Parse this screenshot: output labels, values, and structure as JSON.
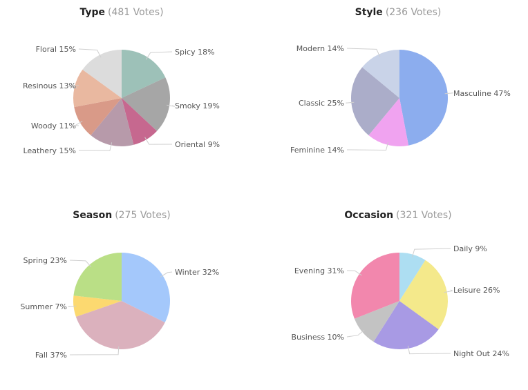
{
  "chart_data": [
    {
      "type": "pie",
      "title": "Type",
      "subtitle": "(481 Votes)",
      "slices": [
        {
          "label": "Spicy 18%",
          "value": 18,
          "color": "#9dc1b8"
        },
        {
          "label": "Smoky 19%",
          "value": 19,
          "color": "#a6a6a6"
        },
        {
          "label": "Oriental 9%",
          "value": 9,
          "color": "#c6688f"
        },
        {
          "label": "Leathery 15%",
          "value": 15,
          "color": "#b79aaa"
        },
        {
          "label": "Woody 11%",
          "value": 11,
          "color": "#d99a88"
        },
        {
          "label": "Resinous 13%",
          "value": 13,
          "color": "#e9b8a0"
        },
        {
          "label": "Floral 15%",
          "value": 15,
          "color": "#dcdcdc"
        }
      ]
    },
    {
      "type": "pie",
      "title": "Style",
      "subtitle": "(236 Votes)",
      "slices": [
        {
          "label": "Masculine 47%",
          "value": 47,
          "color": "#8cadee"
        },
        {
          "label": "Feminine 14%",
          "value": 14,
          "color": "#f0a3f0"
        },
        {
          "label": "Classic 25%",
          "value": 25,
          "color": "#abadc9"
        },
        {
          "label": "Modern 14%",
          "value": 14,
          "color": "#c9d3e8"
        }
      ]
    },
    {
      "type": "pie",
      "title": "Season",
      "subtitle": "(275 Votes)",
      "slices": [
        {
          "label": "Winter 32%",
          "value": 32,
          "color": "#a4c8fb"
        },
        {
          "label": "Fall 37%",
          "value": 37,
          "color": "#dbb1bd"
        },
        {
          "label": "Summer 7%",
          "value": 7,
          "color": "#fcd970"
        },
        {
          "label": "Spring 23%",
          "value": 23,
          "color": "#badf86"
        }
      ]
    },
    {
      "type": "pie",
      "title": "Occasion",
      "subtitle": "(321 Votes)",
      "slices": [
        {
          "label": "Daily 9%",
          "value": 9,
          "color": "#addef2"
        },
        {
          "label": "Leisure 26%",
          "value": 26,
          "color": "#f4e98b"
        },
        {
          "label": "Night Out 24%",
          "value": 24,
          "color": "#a89ae4"
        },
        {
          "label": "Business 10%",
          "value": 10,
          "color": "#c3c3c3"
        },
        {
          "label": "Evening 31%",
          "value": 31,
          "color": "#f287ad"
        }
      ]
    }
  ]
}
